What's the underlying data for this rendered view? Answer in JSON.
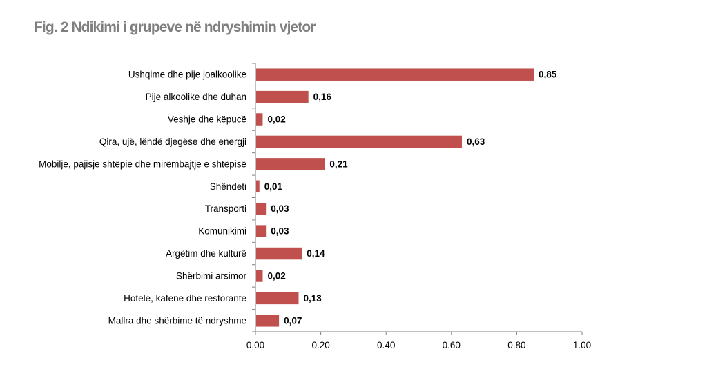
{
  "figure": {
    "title": "Fig. 2 Ndikimi i grupeve në ndryshimin vjetor"
  },
  "chart_data": {
    "type": "bar",
    "orientation": "horizontal",
    "title": "Fig. 2 Ndikimi i grupeve në ndryshimin vjetor",
    "xlabel": "",
    "ylabel": "",
    "categories": [
      "Ushqime dhe pije joalkoolike",
      "Pije alkoolike dhe duhan",
      "Veshje dhe këpucë",
      "Qira, ujë, lëndë djegëse dhe energji",
      "Mobilje, pajisje shtëpie dhe mirëmbajtje e shtëpisë",
      "Shëndeti",
      "Transporti",
      "Komunikimi",
      "Argëtim dhe kulturë",
      "Shërbimi arsimor",
      "Hotele, kafene dhe restorante",
      "Mallra dhe shërbime të ndryshme"
    ],
    "values": [
      0.85,
      0.16,
      0.02,
      0.63,
      0.21,
      0.01,
      0.03,
      0.03,
      0.14,
      0.02,
      0.13,
      0.07
    ],
    "value_labels": [
      "0,85",
      "0,16",
      "0,02",
      "0,63",
      "0,21",
      "0,01",
      "0,03",
      "0,03",
      "0,14",
      "0,02",
      "0,13",
      "0,07"
    ],
    "xlim": [
      0,
      1
    ],
    "xticks": [
      0,
      0.2,
      0.4,
      0.6,
      0.8,
      1.0
    ],
    "xtick_labels": [
      "0.00",
      "0.20",
      "0.40",
      "0.60",
      "0.80",
      "1.00"
    ],
    "grid": false,
    "legend": "none",
    "colors": {
      "bar": "#c0504d",
      "axis": "#7f7f7f",
      "title": "#7f7f7f"
    }
  }
}
